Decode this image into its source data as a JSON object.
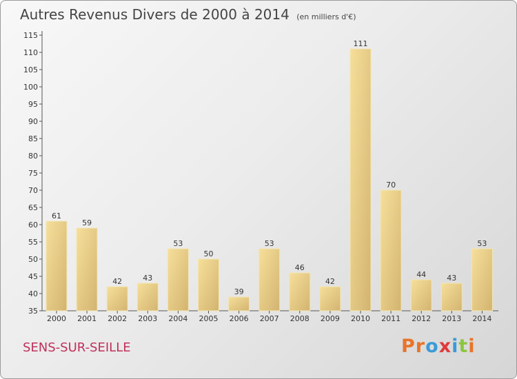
{
  "header": {
    "title": "Autres Revenus Divers de 2000 à 2014",
    "subtitle": "(en milliers d'€)"
  },
  "footer": {
    "commune": "SENS-SUR-SEILLE",
    "logo_text": "Proxiti",
    "logo_colors": [
      "#e8742a",
      "#e8742a",
      "#3a9bd8",
      "#e03a3a",
      "#3a9bd8",
      "#8cc63f",
      "#e8742a"
    ]
  },
  "colors": {
    "bar_light": "#f6df9a",
    "bar_dark": "#d2b470",
    "commune": "#c0305a",
    "axis": "#555555"
  },
  "chart_data": {
    "type": "bar",
    "title": "Autres Revenus Divers de 2000 à 2014",
    "subtitle": "(en milliers d'€)",
    "xlabel": "",
    "ylabel": "",
    "categories": [
      "2000",
      "2001",
      "2002",
      "2003",
      "2004",
      "2005",
      "2006",
      "2007",
      "2008",
      "2009",
      "2010",
      "2011",
      "2012",
      "2013",
      "2014"
    ],
    "values": [
      61,
      59,
      42,
      43,
      53,
      50,
      39,
      53,
      46,
      42,
      111,
      70,
      44,
      43,
      53
    ],
    "ylim": [
      35,
      115
    ],
    "ytick_step": 5,
    "grid": false,
    "data_labels": true,
    "legend": "none"
  }
}
